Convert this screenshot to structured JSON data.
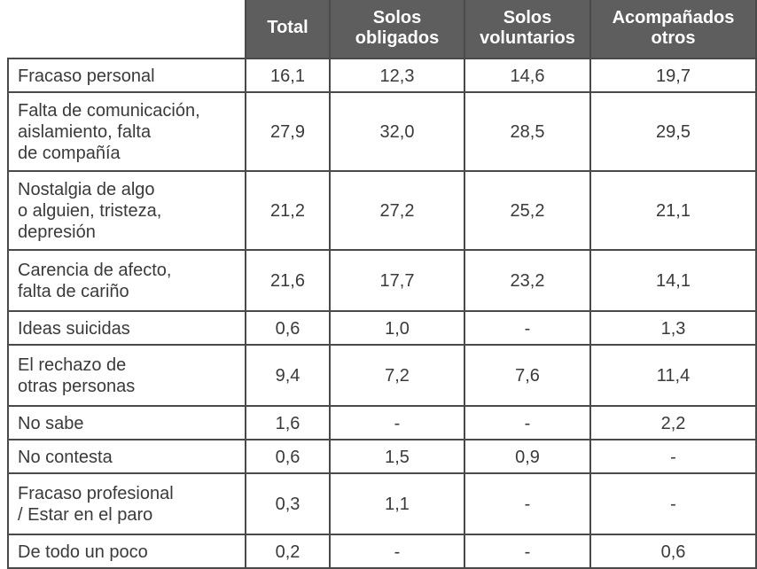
{
  "table": {
    "headers": [
      "",
      "Total",
      "Solos obligados",
      "Solos voluntarios",
      "Acompañados otros"
    ],
    "header_lines": {
      "total": [
        "Total"
      ],
      "solos_obligados": [
        "Solos",
        "obligados"
      ],
      "solos_voluntarios": [
        "Solos",
        "voluntarios"
      ],
      "acompanados_otros": [
        "Acompañados",
        "otros"
      ]
    },
    "rows": [
      {
        "label": "Fracaso personal",
        "total": "16,1",
        "solos_obligados": "12,3",
        "solos_voluntarios": "14,6",
        "acompanados_otros": "19,7"
      },
      {
        "label": "Falta de comunicación,\naislamiento, falta\nde compañía",
        "total": "27,9",
        "solos_obligados": "32,0",
        "solos_voluntarios": "28,5",
        "acompanados_otros": "29,5"
      },
      {
        "label": "Nostalgia de algo\no alguien, tristeza,\ndepresión",
        "total": "21,2",
        "solos_obligados": "27,2",
        "solos_voluntarios": "25,2",
        "acompanados_otros": "21,1"
      },
      {
        "label": "Carencia de afecto,\nfalta de cariño",
        "total": "21,6",
        "solos_obligados": "17,7",
        "solos_voluntarios": "23,2",
        "acompanados_otros": "14,1"
      },
      {
        "label": "Ideas suicidas",
        "total": "0,6",
        "solos_obligados": "1,0",
        "solos_voluntarios": "-",
        "acompanados_otros": "1,3"
      },
      {
        "label": "El rechazo de\notras personas",
        "total": "9,4",
        "solos_obligados": "7,2",
        "solos_voluntarios": "7,6",
        "acompanados_otros": "11,4"
      },
      {
        "label": "No sabe",
        "total": "1,6",
        "solos_obligados": "-",
        "solos_voluntarios": "-",
        "acompanados_otros": "2,2"
      },
      {
        "label": "No contesta",
        "total": "0,6",
        "solos_obligados": "1,5",
        "solos_voluntarios": "0,9",
        "acompanados_otros": "-"
      },
      {
        "label": "Fracaso profesional\n/ Estar en el paro",
        "total": "0,3",
        "solos_obligados": "1,1",
        "solos_voluntarios": "-",
        "acompanados_otros": "-"
      },
      {
        "label": "De todo un poco",
        "total": "0,2",
        "solos_obligados": "-",
        "solos_voluntarios": "-",
        "acompanados_otros": "0,6"
      }
    ]
  },
  "colors": {
    "header_bg": "#5e5e5e",
    "header_text": "#ffffff",
    "border": "#4a4a4a",
    "body_text": "#3a3a3a",
    "background": "#ffffff"
  }
}
